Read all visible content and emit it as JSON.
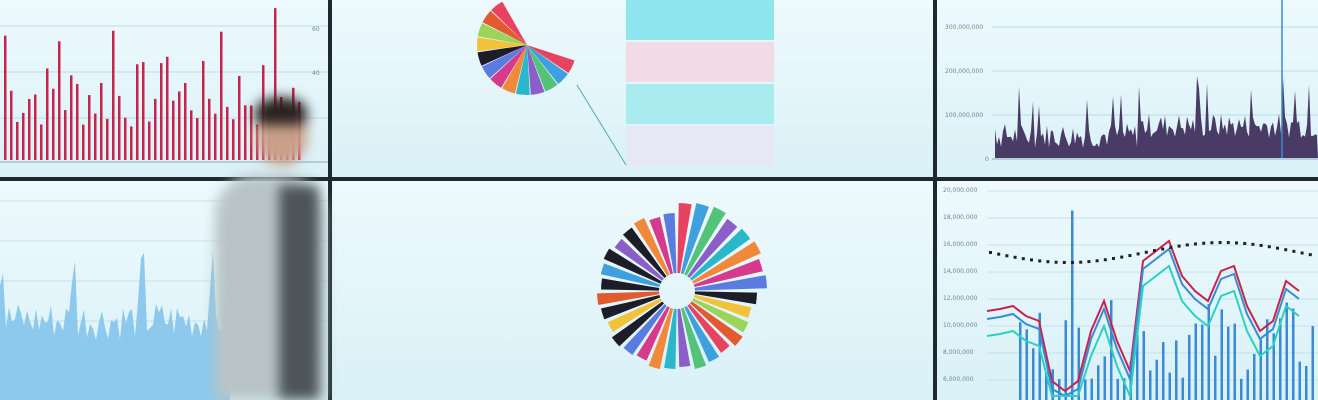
{
  "scene": "video-wall",
  "colors": {
    "screen": "#e3f5fa",
    "bezel": "#1c2a30",
    "red": "#c8234a",
    "blue": "#3a8ad6",
    "teal": "#2ad1c0",
    "purple": "#4a3a66"
  },
  "top_left": {
    "y_ticks": [
      "60",
      "40"
    ]
  },
  "top_right": {
    "y_ticks": [
      "300,000,000",
      "200,000,000",
      "100,000,000",
      "0"
    ]
  },
  "bottom_right": {
    "y_ticks": [
      "20,000,000",
      "18,000,000",
      "16,000,000",
      "14,000,000",
      "12,000,000",
      "10,000,000",
      "8,000,000",
      "6,000,000"
    ]
  }
}
